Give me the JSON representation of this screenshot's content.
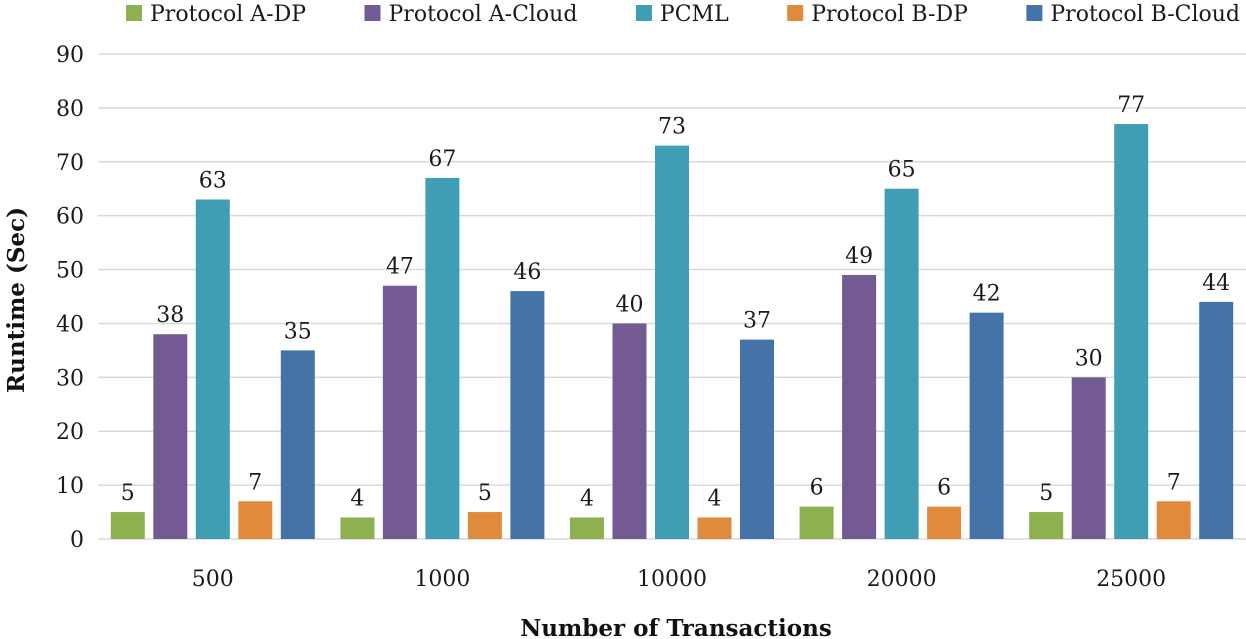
{
  "chart_data": {
    "type": "bar",
    "title": "",
    "xlabel": "Number of Transactions",
    "ylabel": "Runtime (Sec)",
    "ylim": [
      0,
      90
    ],
    "yticks": [
      0,
      10,
      20,
      30,
      40,
      50,
      60,
      70,
      80,
      90
    ],
    "grid": true,
    "legend_position": "top",
    "categories": [
      "500",
      "1000",
      "10000",
      "20000",
      "25000"
    ],
    "series": [
      {
        "name": "Protocol A-DP",
        "color": "#8db050",
        "values": [
          5,
          4,
          4,
          6,
          5
        ]
      },
      {
        "name": "Protocol A-Cloud",
        "color": "#735a93",
        "values": [
          38,
          47,
          40,
          49,
          30
        ]
      },
      {
        "name": "PCML",
        "color": "#3f9eb3",
        "values": [
          63,
          67,
          73,
          65,
          77
        ]
      },
      {
        "name": "Protocol B-DP",
        "color": "#e08b3c",
        "values": [
          7,
          5,
          4,
          6,
          7
        ]
      },
      {
        "name": "Protocol B-Cloud",
        "color": "#4573a7",
        "values": [
          35,
          46,
          37,
          42,
          44
        ]
      }
    ]
  }
}
